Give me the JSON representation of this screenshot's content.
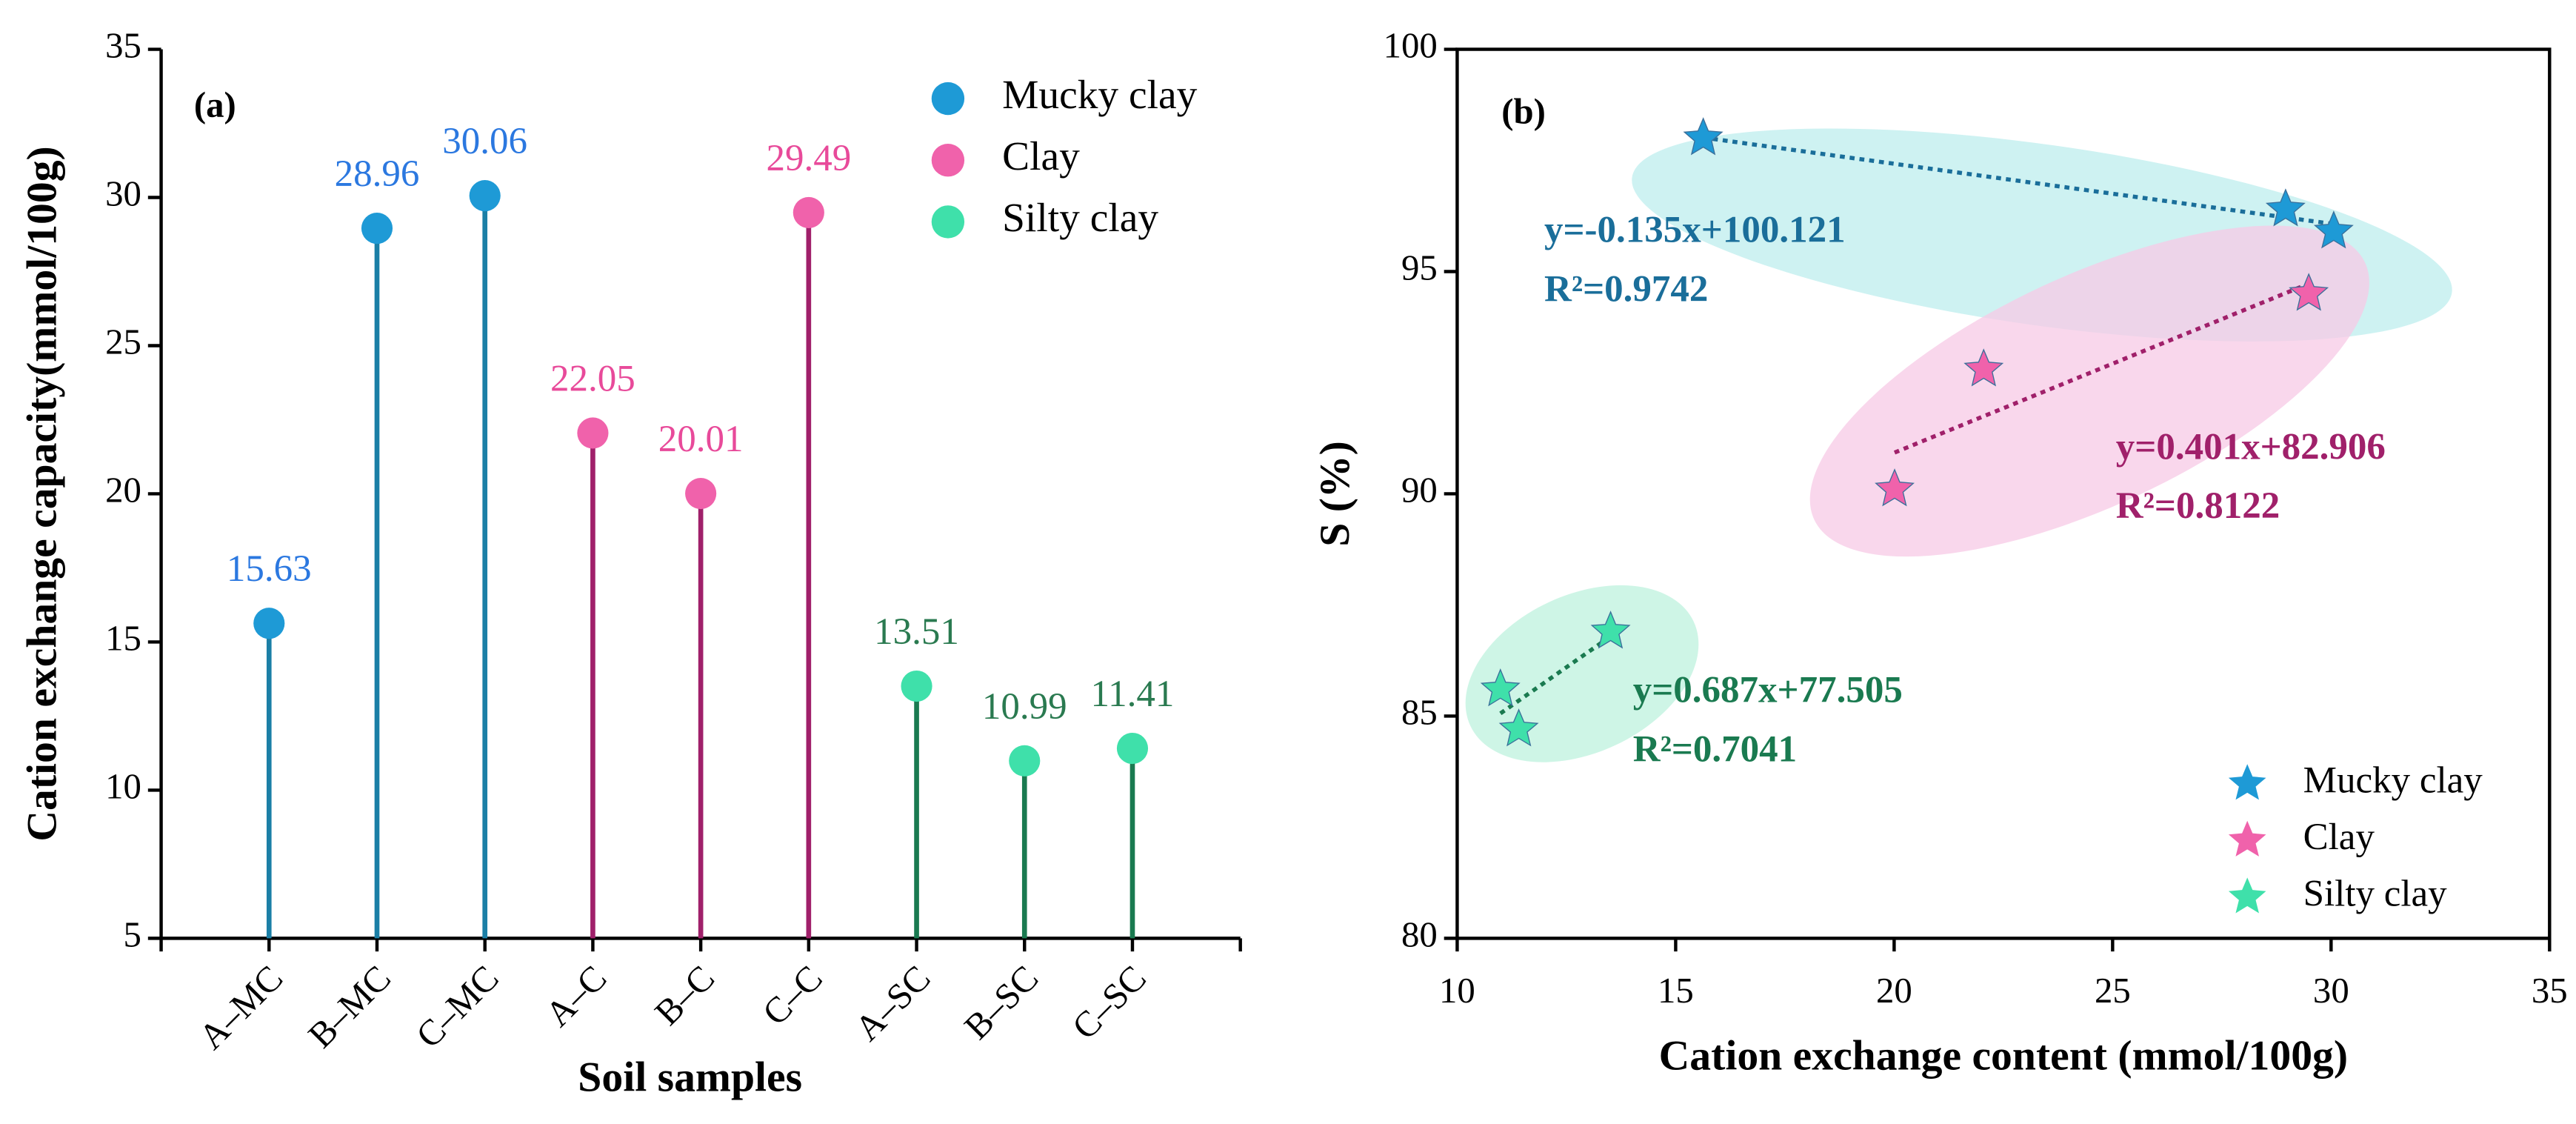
{
  "chart_data": [
    {
      "type": "lollipop",
      "annotation": "(a)",
      "x_label": "Soil samples",
      "y_label": "Cation exchange capacity(mmol/100g)",
      "ylim": [
        5,
        35
      ],
      "yticks": [
        5,
        10,
        15,
        20,
        25,
        30,
        35
      ],
      "legend": "upper right",
      "series": [
        {
          "name": "Mucky clay",
          "color": "#1e9ad6",
          "stem_color": "#1b7fa6",
          "label_color": "#2b78e0",
          "categories": [
            "A–MC",
            "B–MC",
            "C–MC"
          ],
          "values": [
            15.63,
            28.96,
            30.06
          ]
        },
        {
          "name": "Clay",
          "color": "#f062ab",
          "stem_color": "#a0206a",
          "label_color": "#e84a9a",
          "categories": [
            "A–C",
            "B–C",
            "C–C"
          ],
          "values": [
            22.05,
            20.01,
            29.49
          ]
        },
        {
          "name": "Silty clay",
          "color": "#3fe0aa",
          "stem_color": "#1a7a50",
          "label_color": "#2a7a50",
          "categories": [
            "A–SC",
            "B–SC",
            "C–SC"
          ],
          "values": [
            13.51,
            10.99,
            11.41
          ]
        }
      ]
    },
    {
      "type": "scatter",
      "annotation": "(b)",
      "x_label": "Cation exchange content (mmol/100g)",
      "y_label": "S (%)",
      "xlim": [
        10,
        35
      ],
      "xticks": [
        10,
        15,
        20,
        25,
        30,
        35
      ],
      "ylim": [
        80,
        100
      ],
      "yticks": [
        80,
        85,
        90,
        95,
        100
      ],
      "legend": "lower right",
      "series": [
        {
          "name": "Mucky clay",
          "color": "#1e9ad6",
          "text_color": "#1a6e9a",
          "x": [
            15.63,
            28.96,
            30.06
          ],
          "values": [
            98.0,
            96.4,
            95.9
          ],
          "equation": "y=-0.135x+100.121",
          "r2": "R²=0.9742"
        },
        {
          "name": "Clay",
          "color": "#f062ab",
          "text_color": "#a0206a",
          "x": [
            22.05,
            20.01,
            29.49
          ],
          "values": [
            92.8,
            90.1,
            94.5
          ],
          "equation": "y=0.401x+82.906",
          "r2": "R²=0.8122"
        },
        {
          "name": "Silty clay",
          "color": "#3fe0aa",
          "text_color": "#1a7a50",
          "x": [
            13.51,
            10.99,
            11.41
          ],
          "values": [
            86.9,
            85.6,
            84.7
          ],
          "equation": "y=0.687x+77.505",
          "r2": "R²=0.7041"
        }
      ]
    }
  ]
}
